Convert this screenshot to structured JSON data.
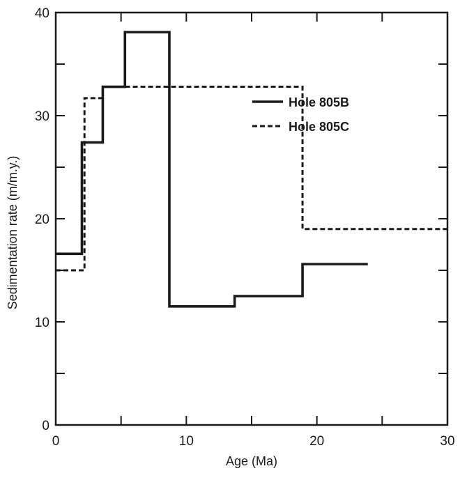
{
  "chart_data": {
    "type": "line",
    "step": "post",
    "xlabel": "Age (Ma)",
    "ylabel": "Sedimentation rate (m/m.y.)",
    "xlim": [
      0,
      30
    ],
    "ylim": [
      0,
      40
    ],
    "x_ticks": [
      0,
      10,
      20,
      30
    ],
    "y_ticks": [
      0,
      10,
      20,
      30,
      40
    ],
    "x_minor_tick_step": 5,
    "y_minor_tick_step": 5,
    "ticks_on_all_sides": true,
    "grid": false,
    "legend": "upper-right",
    "series": [
      {
        "name": "Hole 805B",
        "line_style": "solid",
        "color": "#1a1a1a",
        "x": [
          0,
          2.0,
          3.6,
          5.3,
          8.7,
          13.7,
          18.9,
          23.9
        ],
        "y": [
          16.6,
          27.4,
          32.8,
          38.1,
          11.5,
          12.5,
          15.6,
          15.6
        ]
      },
      {
        "name": "Hole 805C",
        "line_style": "dashed",
        "color": "#1a1a1a",
        "x": [
          0,
          2.2,
          3.6,
          18.9,
          30
        ],
        "y": [
          15.0,
          31.7,
          32.8,
          19.0,
          19.0
        ]
      }
    ]
  }
}
